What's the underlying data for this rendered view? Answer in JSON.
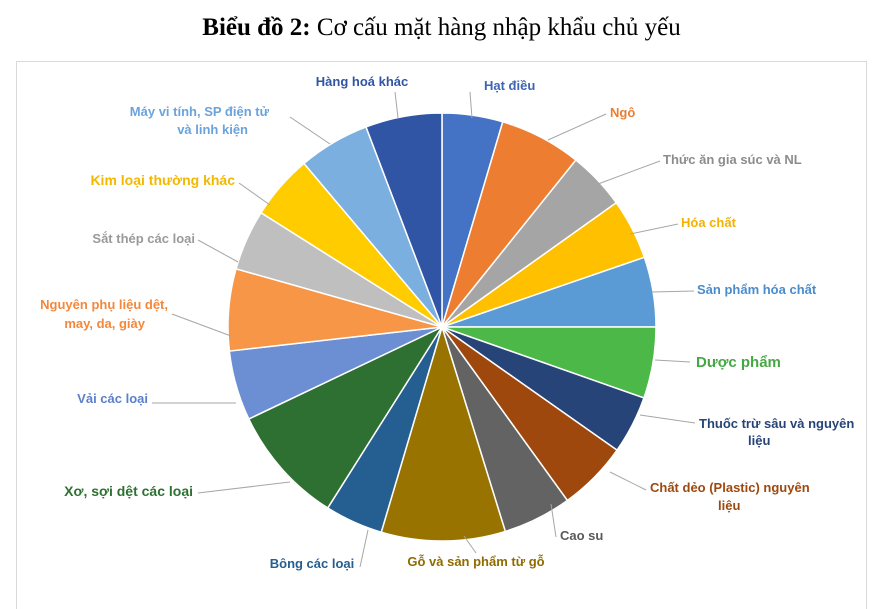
{
  "title": {
    "bold": "Biểu đồ 2:",
    "rest": " Cơ cấu mặt hàng nhập khẩu chủ yếu"
  },
  "chart_data": {
    "type": "pie",
    "title": "Biểu đồ 2: Cơ cấu mặt hàng nhập khẩu chủ yếu",
    "start_angle_deg": 0,
    "direction": "clockwise",
    "legend": "none",
    "slices": [
      {
        "label": "Hạt điều",
        "value": 4.6,
        "color": "#4472C4",
        "label_color": "#3E64B4"
      },
      {
        "label": "Ngô",
        "value": 6.2,
        "color": "#ED7D31",
        "label_color": "#ED7D31"
      },
      {
        "label": "Thức ăn gia súc và NL",
        "value": 4.4,
        "color": "#A5A5A5",
        "label_color": "#8C8C8C"
      },
      {
        "label": "Hóa chất",
        "value": 4.6,
        "color": "#FFC000",
        "label_color": "#F2B200"
      },
      {
        "label": "Sản phẩm hóa chất",
        "value": 5.3,
        "color": "#5B9BD5",
        "label_color": "#4A8CCB"
      },
      {
        "label": "Dược phẩm",
        "value": 5.4,
        "color": "#4CB848",
        "label_color": "#45A843"
      },
      {
        "label": "Thuốc trừ sâu và nguyên liệu",
        "value": 4.4,
        "color": "#264478",
        "label_color": "#264478"
      },
      {
        "label": "Chất dẻo (Plastic) nguyên liệu",
        "value": 5.3,
        "color": "#9E480E",
        "label_color": "#9E480E"
      },
      {
        "label": "Cao su",
        "value": 5.2,
        "color": "#636363",
        "label_color": "#595959"
      },
      {
        "label": "Gỗ và sản phẩm từ gỗ",
        "value": 9.4,
        "color": "#997300",
        "label_color": "#8F6B00"
      },
      {
        "label": "Bông các loại",
        "value": 4.4,
        "color": "#255E91",
        "label_color": "#255E91"
      },
      {
        "label": "Xơ, sợi dệt các loại",
        "value": 9.0,
        "color": "#2E7031",
        "label_color": "#2E7031"
      },
      {
        "label": "Vải các loại",
        "value": 5.3,
        "color": "#6C8ED2",
        "label_color": "#5B7FCB"
      },
      {
        "label": "Nguyên phụ liệu dệt, may, da, giày",
        "value": 6.2,
        "color": "#F79646",
        "label_color": "#F4873A"
      },
      {
        "label": "Sắt thép các loại",
        "value": 4.6,
        "color": "#BFBFBF",
        "label_color": "#9A9A9A"
      },
      {
        "label": "Kim loại thường khác",
        "value": 4.9,
        "color": "#FFCC00",
        "label_color": "#F2B800"
      },
      {
        "label": "Máy vi tính, SP điện tử và linh kiện",
        "value": 5.4,
        "color": "#7AAFE0",
        "label_color": "#6AA3DC"
      },
      {
        "label": "Hàng hoá khác",
        "value": 5.8,
        "color": "#2F55A4",
        "label_color": "#2F55A4"
      }
    ]
  }
}
